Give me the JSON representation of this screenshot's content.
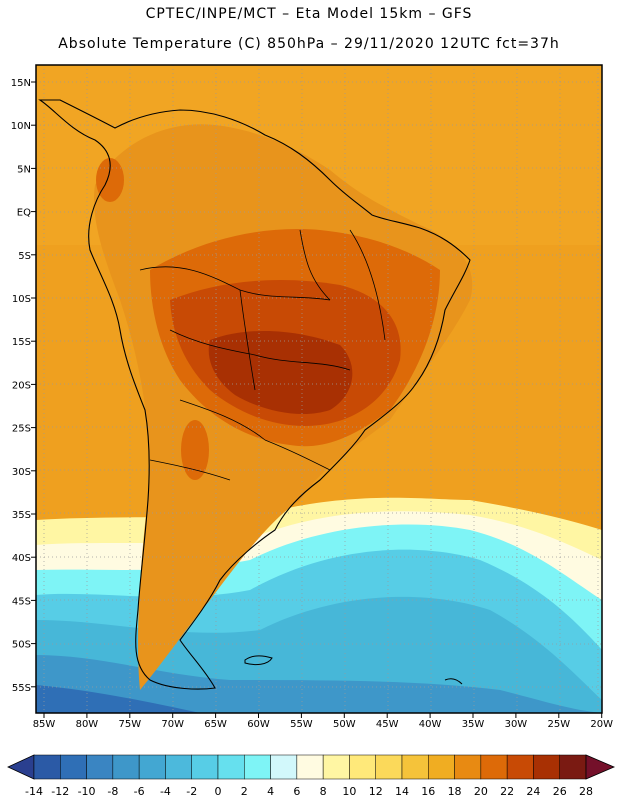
{
  "header": {
    "line1": "CPTEC/INPE/MCT –  Eta Model 15km – GFS",
    "line2": "Absolute Temperature (C) 850hPa – 29/11/2020 12UTC fct=37h"
  },
  "axes": {
    "latitudes": [
      "15N",
      "10N",
      "5N",
      "EQ",
      "5S",
      "10S",
      "15S",
      "20S",
      "25S",
      "30S",
      "35S",
      "40S",
      "45S",
      "50S",
      "55S"
    ],
    "longitudes": [
      "85W",
      "80W",
      "75W",
      "70W",
      "65W",
      "60W",
      "55W",
      "50W",
      "45W",
      "40W",
      "35W",
      "30W",
      "25W",
      "20W"
    ]
  },
  "colorbar": {
    "labels": [
      "-14",
      "-12",
      "-10",
      "-8",
      "-6",
      "-4",
      "-2",
      "0",
      "2",
      "4",
      "6",
      "8",
      "10",
      "12",
      "14",
      "16",
      "18",
      "20",
      "22",
      "24",
      "26",
      "28"
    ],
    "colors": [
      "#2a3f8f",
      "#2b5aa6",
      "#2f6fb6",
      "#3a85c2",
      "#3e97c9",
      "#43a7d2",
      "#4cb9dc",
      "#57cde6",
      "#66e0ee",
      "#7ef4f6",
      "#d2f8fb",
      "#fffbe1",
      "#fff6a3",
      "#ffe97a",
      "#fbd95a",
      "#f5c33a",
      "#f0ad22",
      "#e88a12",
      "#dd6a08",
      "#c84a05",
      "#a83003",
      "#7a1a12",
      "#74102a"
    ]
  },
  "colors": {
    "ocean_warm": "#efa01f",
    "land_warm": "#e8941c",
    "hot_core": "#b83c0c",
    "cool_ocean": "#47b7d8",
    "cold_tip": "#2f6fb6",
    "outline": "#000000"
  }
}
